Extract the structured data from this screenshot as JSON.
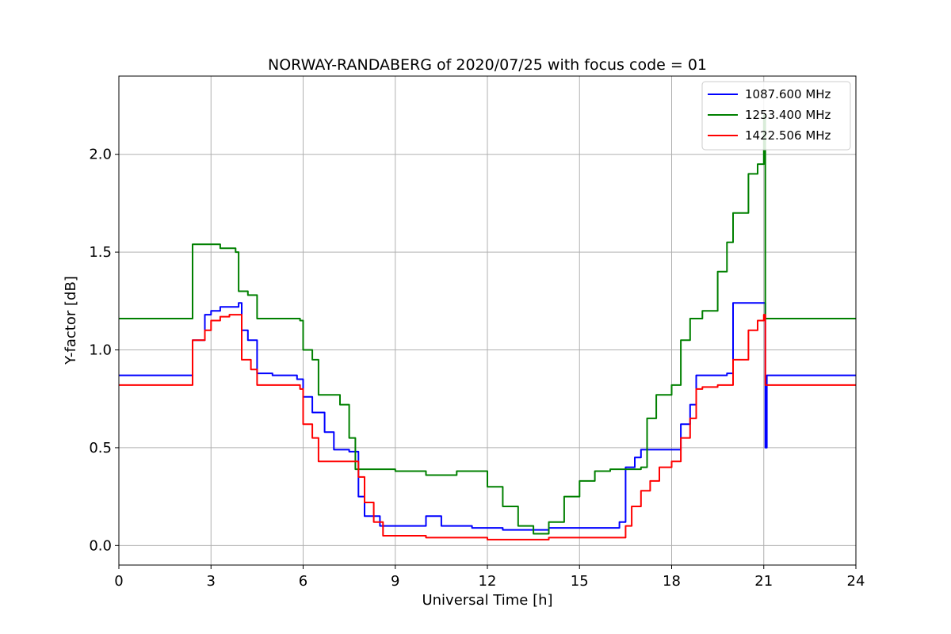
{
  "chart_data": {
    "type": "line",
    "title": "NORWAY-RANDABERG of 2020/07/25 with focus code = 01",
    "xlabel": "Universal Time [h]",
    "ylabel": "Y-factor [dB]",
    "xlim": [
      0,
      24
    ],
    "ylim": [
      -0.1,
      2.4
    ],
    "xticks": [
      0,
      3,
      6,
      9,
      12,
      15,
      18,
      21,
      24
    ],
    "yticks": [
      0.0,
      0.5,
      1.0,
      1.5,
      2.0
    ],
    "grid": true,
    "legend_position": "top-right",
    "series": [
      {
        "name": "1087.600 MHz",
        "color": "#0000ff",
        "x": [
          0,
          2.3,
          2.4,
          2.6,
          2.8,
          3.0,
          3.3,
          3.6,
          3.9,
          4.0,
          4.2,
          4.5,
          5.0,
          5.5,
          5.8,
          6.0,
          6.3,
          6.7,
          7.0,
          7.5,
          7.8,
          8.0,
          8.5,
          9.0,
          9.5,
          10.0,
          10.5,
          11.0,
          11.5,
          12.0,
          12.5,
          13.0,
          13.5,
          14.0,
          14.5,
          15.0,
          15.5,
          16.0,
          16.3,
          16.5,
          16.8,
          17.0,
          17.5,
          18.0,
          18.3,
          18.6,
          18.8,
          19.0,
          19.5,
          19.8,
          20.0,
          20.5,
          21.0,
          21.05,
          21.1,
          22.0,
          23.0,
          24.0
        ],
        "y": [
          0.87,
          0.87,
          1.05,
          1.05,
          1.18,
          1.2,
          1.22,
          1.22,
          1.24,
          1.1,
          1.05,
          0.88,
          0.87,
          0.87,
          0.85,
          0.76,
          0.68,
          0.58,
          0.49,
          0.48,
          0.25,
          0.15,
          0.1,
          0.1,
          0.1,
          0.15,
          0.1,
          0.1,
          0.09,
          0.09,
          0.08,
          0.08,
          0.08,
          0.09,
          0.09,
          0.09,
          0.09,
          0.09,
          0.12,
          0.4,
          0.45,
          0.49,
          0.49,
          0.49,
          0.62,
          0.72,
          0.87,
          0.87,
          0.87,
          0.88,
          1.24,
          1.24,
          1.24,
          0.5,
          0.87,
          0.87,
          0.87,
          0.87
        ]
      },
      {
        "name": "1253.400 MHz",
        "color": "#008000",
        "x": [
          0,
          2.3,
          2.4,
          2.8,
          3.3,
          3.8,
          3.9,
          4.2,
          4.5,
          5.0,
          5.5,
          5.9,
          6.0,
          6.3,
          6.5,
          7.0,
          7.2,
          7.5,
          7.7,
          8.0,
          9.0,
          10.0,
          11.0,
          11.5,
          12.0,
          12.5,
          13.0,
          13.5,
          14.0,
          14.5,
          15.0,
          15.5,
          16.0,
          16.5,
          17.0,
          17.2,
          17.5,
          17.8,
          18.0,
          18.3,
          18.6,
          18.8,
          19.0,
          19.5,
          19.8,
          20.0,
          20.5,
          20.8,
          21.0,
          21.05,
          22.0,
          23.0,
          24.0
        ],
        "y": [
          1.16,
          1.16,
          1.54,
          1.54,
          1.52,
          1.5,
          1.3,
          1.28,
          1.16,
          1.16,
          1.16,
          1.15,
          1.0,
          0.95,
          0.77,
          0.77,
          0.72,
          0.55,
          0.39,
          0.39,
          0.38,
          0.36,
          0.38,
          0.38,
          0.3,
          0.2,
          0.1,
          0.06,
          0.12,
          0.25,
          0.33,
          0.38,
          0.39,
          0.39,
          0.4,
          0.65,
          0.77,
          0.77,
          0.82,
          1.05,
          1.16,
          1.16,
          1.2,
          1.4,
          1.55,
          1.7,
          1.9,
          1.95,
          2.2,
          1.16,
          1.16,
          1.16,
          1.16
        ]
      },
      {
        "name": "1422.506 MHz",
        "color": "#ff0000",
        "x": [
          0,
          2.3,
          2.4,
          2.6,
          2.8,
          3.0,
          3.3,
          3.6,
          3.9,
          4.0,
          4.3,
          4.5,
          5.0,
          5.5,
          5.9,
          6.0,
          6.3,
          6.5,
          7.0,
          7.5,
          7.8,
          8.0,
          8.3,
          8.6,
          9.0,
          10.0,
          11.0,
          12.0,
          12.5,
          13.0,
          14.0,
          15.0,
          16.0,
          16.5,
          16.7,
          17.0,
          17.3,
          17.6,
          18.0,
          18.3,
          18.6,
          18.8,
          19.0,
          19.5,
          19.8,
          20.0,
          20.5,
          20.8,
          21.0,
          21.05,
          22.0,
          23.0,
          24.0
        ],
        "y": [
          0.82,
          0.82,
          1.05,
          1.05,
          1.1,
          1.15,
          1.17,
          1.18,
          1.18,
          0.95,
          0.9,
          0.82,
          0.82,
          0.82,
          0.8,
          0.62,
          0.55,
          0.43,
          0.43,
          0.43,
          0.35,
          0.22,
          0.12,
          0.05,
          0.05,
          0.04,
          0.04,
          0.03,
          0.03,
          0.03,
          0.04,
          0.04,
          0.04,
          0.1,
          0.2,
          0.28,
          0.33,
          0.4,
          0.43,
          0.55,
          0.65,
          0.8,
          0.81,
          0.82,
          0.82,
          0.95,
          1.1,
          1.15,
          1.18,
          0.82,
          0.82,
          0.82,
          0.82
        ]
      }
    ]
  }
}
